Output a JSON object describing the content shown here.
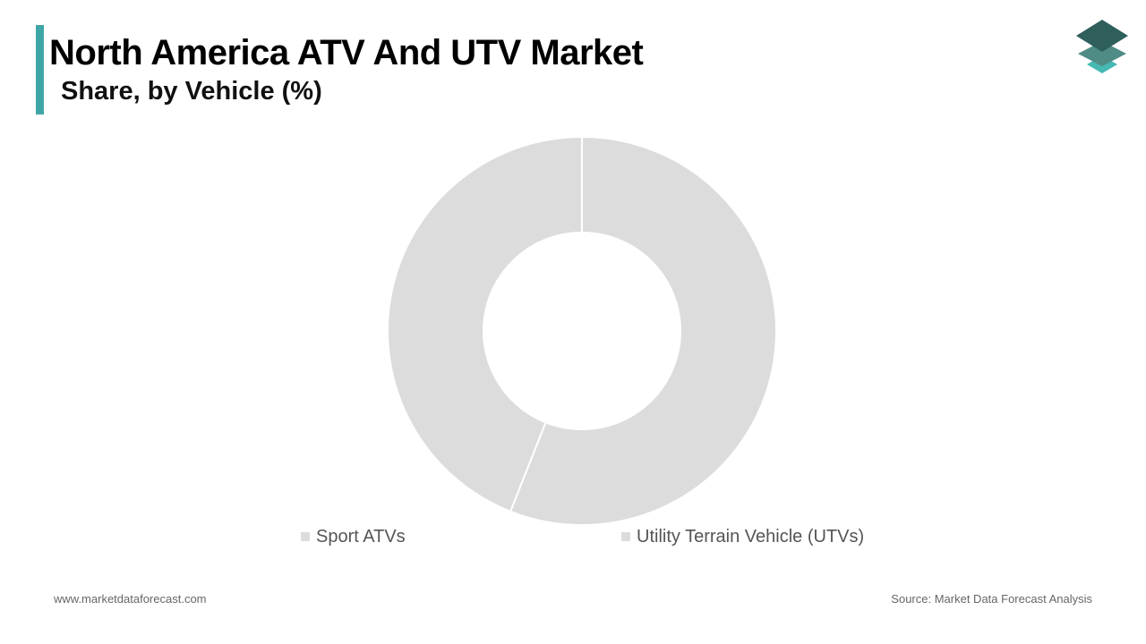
{
  "header": {
    "title": "North America ATV And UTV Market",
    "subtitle": "Share, by Vehicle (%)",
    "accent_color": "#3fa6a6"
  },
  "logo": {
    "icon": "stacked-layers-logo-icon",
    "colors": [
      "#2f5f5a",
      "#4f8c86",
      "#45b8b2"
    ]
  },
  "chart_data": {
    "type": "pie",
    "style": "donut",
    "title": "North America ATV And UTV Market",
    "subtitle": "Share, by Vehicle (%)",
    "categories": [
      "Sport ATVs",
      "Utility Terrain Vehicle (UTVs)"
    ],
    "values": [
      44,
      56
    ],
    "colors": [
      "#dcdcdc",
      "#dcdcdc"
    ],
    "legend_position": "bottom"
  },
  "footer": {
    "website": "www.marketdataforecast.com",
    "source": "Source: Market Data Forecast Analysis"
  }
}
